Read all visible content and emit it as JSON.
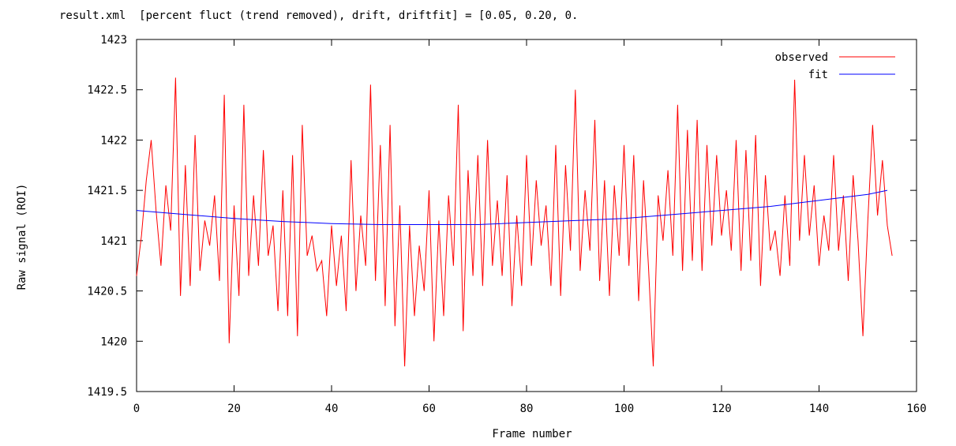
{
  "chart_data": {
    "type": "line",
    "title": "result.xml  [percent fluct (trend removed), drift, driftfit] = [0.05, 0.20, 0.",
    "xlabel": "Frame number",
    "ylabel": "Raw signal (ROI)",
    "xlim": [
      0,
      160
    ],
    "ylim": [
      1419.5,
      1423
    ],
    "x_ticks": [
      0,
      20,
      40,
      60,
      80,
      100,
      120,
      140,
      160
    ],
    "y_ticks": [
      1419.5,
      1420,
      1420.5,
      1421,
      1421.5,
      1422,
      1422.5,
      1423
    ],
    "grid": false,
    "legend_position": "top-right",
    "series": [
      {
        "name": "observed",
        "color": "#ff0000",
        "x_start": 0,
        "x_step": 1,
        "values": [
          1420.65,
          1421.05,
          1421.6,
          1422.0,
          1421.3,
          1420.75,
          1421.55,
          1421.1,
          1422.62,
          1420.45,
          1421.75,
          1420.55,
          1422.05,
          1420.7,
          1421.2,
          1420.95,
          1421.45,
          1420.6,
          1422.45,
          1419.98,
          1421.35,
          1420.45,
          1422.35,
          1420.65,
          1421.45,
          1420.75,
          1421.9,
          1420.85,
          1421.15,
          1420.3,
          1421.5,
          1420.25,
          1421.85,
          1420.05,
          1422.15,
          1420.85,
          1421.05,
          1420.7,
          1420.8,
          1420.25,
          1421.15,
          1420.55,
          1421.05,
          1420.3,
          1421.8,
          1420.5,
          1421.25,
          1420.75,
          1422.55,
          1420.6,
          1421.95,
          1420.35,
          1422.15,
          1420.15,
          1421.35,
          1419.75,
          1421.15,
          1420.25,
          1420.95,
          1420.5,
          1421.5,
          1420.0,
          1421.2,
          1420.25,
          1421.45,
          1420.75,
          1422.35,
          1420.1,
          1421.7,
          1420.65,
          1421.85,
          1420.55,
          1422.0,
          1420.75,
          1421.4,
          1420.65,
          1421.65,
          1420.35,
          1421.25,
          1420.55,
          1421.85,
          1420.75,
          1421.6,
          1420.95,
          1421.35,
          1420.55,
          1421.95,
          1420.45,
          1421.75,
          1420.9,
          1422.5,
          1420.7,
          1421.5,
          1420.9,
          1422.2,
          1420.6,
          1421.6,
          1420.45,
          1421.55,
          1420.85,
          1421.95,
          1420.75,
          1421.85,
          1420.4,
          1421.6,
          1420.75,
          1419.75,
          1421.45,
          1421.0,
          1421.7,
          1420.85,
          1422.35,
          1420.7,
          1422.1,
          1420.8,
          1422.2,
          1420.7,
          1421.95,
          1420.95,
          1421.85,
          1421.05,
          1421.5,
          1420.9,
          1422.0,
          1420.7,
          1421.9,
          1420.8,
          1422.05,
          1420.55,
          1421.65,
          1420.9,
          1421.1,
          1420.65,
          1421.45,
          1420.75,
          1422.6,
          1421.0,
          1421.85,
          1421.05,
          1421.55,
          1420.75,
          1421.25,
          1420.9,
          1421.85,
          1420.9,
          1421.45,
          1420.6,
          1421.65,
          1421.0,
          1420.05,
          1421.2,
          1422.15,
          1421.25,
          1421.8,
          1421.15,
          1420.85
        ]
      },
      {
        "name": "fit",
        "color": "#0000ff",
        "x": [
          0,
          10,
          20,
          30,
          40,
          50,
          60,
          70,
          80,
          90,
          100,
          110,
          120,
          130,
          140,
          150,
          154
        ],
        "values": [
          1421.3,
          1421.26,
          1421.22,
          1421.19,
          1421.17,
          1421.16,
          1421.16,
          1421.16,
          1421.18,
          1421.2,
          1421.22,
          1421.26,
          1421.3,
          1421.34,
          1421.4,
          1421.46,
          1421.5
        ]
      }
    ]
  }
}
